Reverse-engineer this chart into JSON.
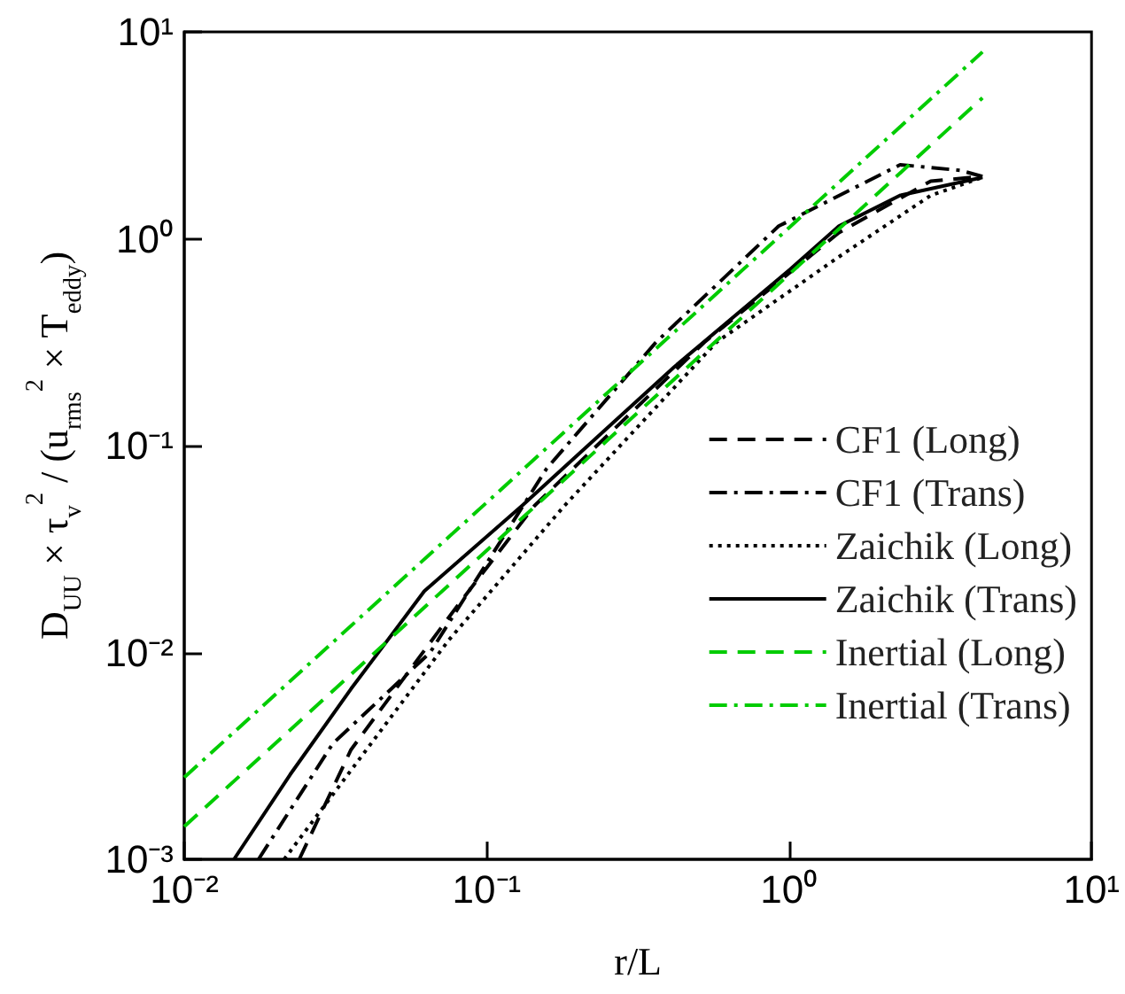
{
  "chart_data": {
    "type": "line",
    "xlabel": "r/L",
    "ylabel": "D$_{UU}$ × τ$_{v}$$^{2}$ / (u$_{rms}$$^{2}$ × T$_{eddy}$)",
    "log": "xy",
    "grid": false,
    "legend": "right",
    "marker": "none",
    "xlim": [
      0.01,
      10
    ],
    "ylim": [
      0.001,
      10
    ],
    "xticks": [
      {
        "value": 0.01,
        "label": "10⁻²"
      },
      {
        "value": 0.1,
        "label": "10⁻¹"
      },
      {
        "value": 1,
        "label": "10⁰"
      },
      {
        "value": 10,
        "label": "10¹"
      }
    ],
    "yticks": [
      {
        "value": 0.001,
        "label": "10⁻³"
      },
      {
        "value": 0.01,
        "label": "10⁻²"
      },
      {
        "value": 0.1,
        "label": "10⁻¹"
      },
      {
        "value": 1,
        "label": "10⁰"
      },
      {
        "value": 10,
        "label": "10¹"
      }
    ],
    "series": [
      {
        "name": "CF1 (Long)",
        "color": "#000000",
        "line_style": "dashed",
        "x": [
          0.024,
          0.0356,
          0.0785,
          0.144,
          0.525,
          1.46,
          2.94,
          4.36
        ],
        "values": [
          0.001,
          0.00339,
          0.0162,
          0.0513,
          0.316,
          1.07,
          1.9,
          2.0
        ]
      },
      {
        "name": "CF1 (Trans)",
        "color": "#000000",
        "line_style": "dashdot",
        "x": [
          0.0176,
          0.031,
          0.065,
          0.158,
          0.363,
          0.923,
          2.33,
          3.69,
          4.36
        ],
        "values": [
          0.001,
          0.00363,
          0.01,
          0.0776,
          0.316,
          1.15,
          2.28,
          2.14,
          2.0
        ]
      },
      {
        "name": "Zaichik (Long)",
        "color": "#000000",
        "line_style": "dotted",
        "x": [
          0.0214,
          0.075,
          0.181,
          0.575,
          1.46,
          2.94,
          4.36
        ],
        "values": [
          0.001,
          0.0115,
          0.0513,
          0.316,
          0.817,
          1.62,
          1.98
        ]
      },
      {
        "name": "Zaichik (Trans)",
        "color": "#000000",
        "line_style": "solid",
        "x": [
          0.0146,
          0.0224,
          0.0356,
          0.0471,
          0.0622,
          0.131,
          0.417,
          1.01,
          1.46,
          2.33,
          4.36
        ],
        "values": [
          0.001,
          0.00257,
          0.00667,
          0.0115,
          0.0198,
          0.0513,
          0.24,
          0.714,
          1.15,
          1.62,
          1.98
        ]
      },
      {
        "name": "Inertial (Long)",
        "color": "#00cc00",
        "line_style": "dashed",
        "x": [
          0.01,
          4.36
        ],
        "values": [
          0.00144,
          4.8
        ]
      },
      {
        "name": "Inertial (Trans)",
        "color": "#00cc00",
        "line_style": "dashdot",
        "x": [
          0.01,
          4.36
        ],
        "values": [
          0.00249,
          8.0
        ]
      }
    ]
  }
}
